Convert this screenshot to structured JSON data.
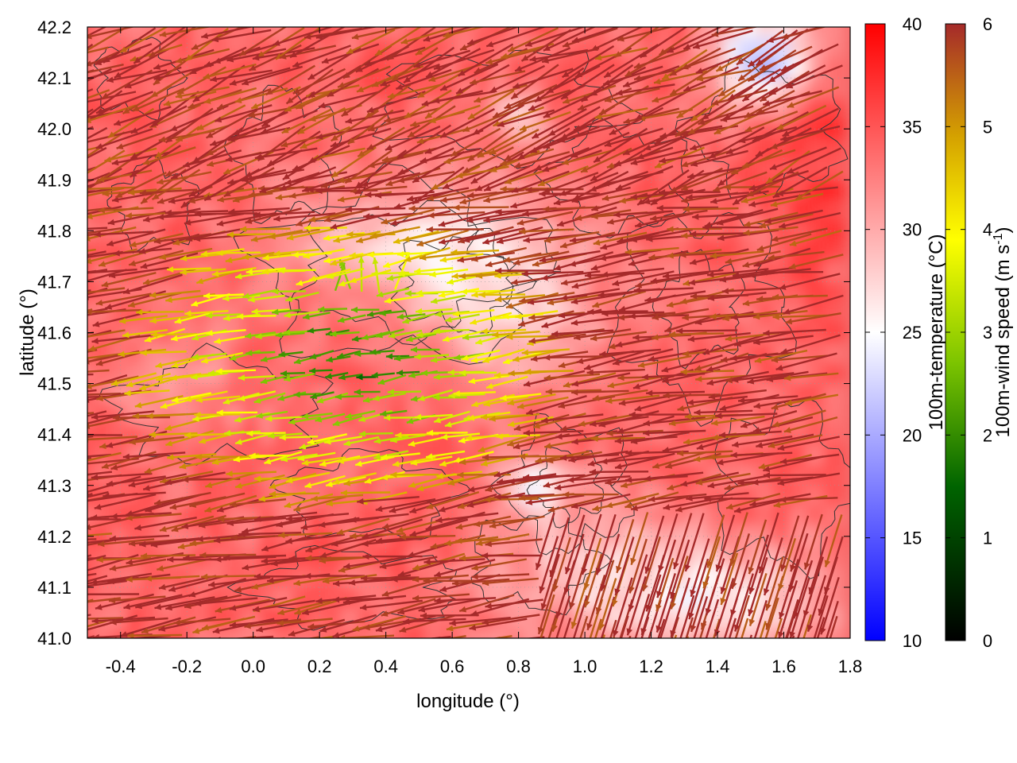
{
  "chart_data": {
    "type": "heatmap",
    "title": "",
    "xlabel": "longitude (°)",
    "ylabel": "latitude (°)",
    "xlim": [
      -0.5,
      1.8
    ],
    "ylim": [
      41.0,
      42.2
    ],
    "xticks": [
      "-0.4",
      "-0.2",
      "0.0",
      "0.2",
      "0.4",
      "0.6",
      "0.8",
      "1.0",
      "1.2",
      "1.4",
      "1.6",
      "1.8"
    ],
    "yticks": [
      "41.0",
      "41.1",
      "41.2",
      "41.3",
      "41.4",
      "41.5",
      "41.6",
      "41.7",
      "41.8",
      "41.9",
      "42.0",
      "42.1",
      "42.2"
    ],
    "grid": true,
    "temperature_colorbar": {
      "label": "100m-temperature (°C)",
      "range": [
        10,
        40
      ],
      "ticks": [
        "10",
        "15",
        "20",
        "25",
        "30",
        "35",
        "40"
      ],
      "colors": [
        "#0000ff",
        "#ffffff",
        "#ff0000"
      ]
    },
    "wind_colorbar": {
      "label": "100m-wind speed (m s-1)",
      "label_main": "100m-wind speed (m s",
      "label_sup": "-1",
      "label_end": ")",
      "range": [
        0,
        6
      ],
      "ticks": [
        "0",
        "1",
        "2",
        "3",
        "4",
        "5",
        "6"
      ],
      "colors": [
        "#000000",
        "#006400",
        "#7cc400",
        "#ffff00",
        "#d4a000",
        "#b06030",
        "#a52a2a"
      ]
    },
    "field_description": "Gridded 100m temperature (mostly 28-38 °C, cooler 20-25 °C patches near lon 1.5-1.8 lat 42.1 and lon 0.9-1.8 lat 41.0-41.2) with wind vectors colored by speed; strong (6 m/s) westward flow over most of the domain, weak (1-4 m/s) winds in the central region lon -0.3-1.0 lat 41.3-41.9"
  }
}
